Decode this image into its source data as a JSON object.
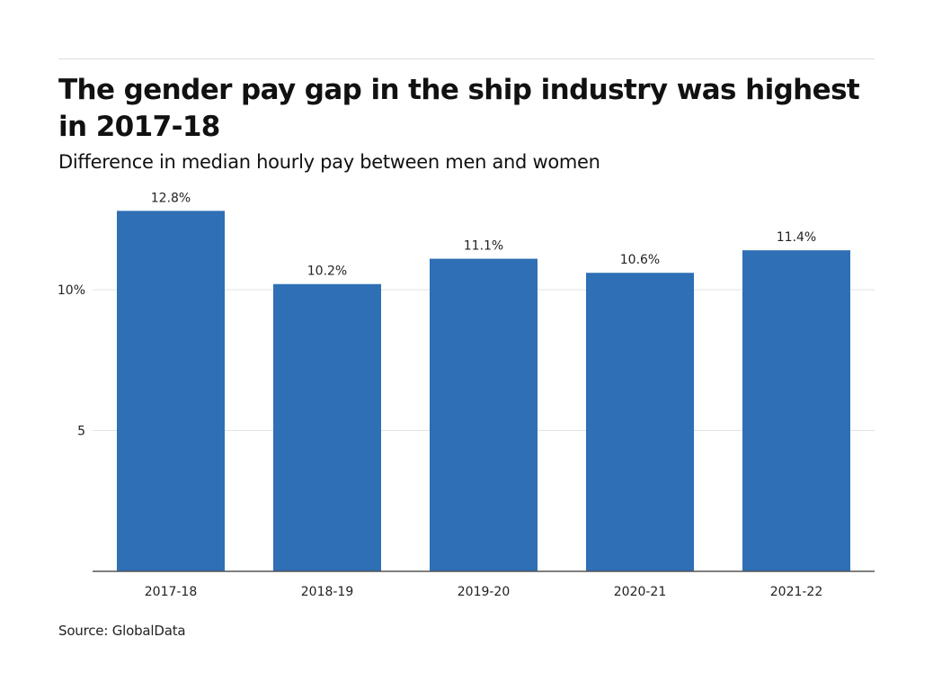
{
  "chart_data": {
    "type": "bar",
    "title": "The gender pay gap in the ship industry was highest in 2017-18",
    "subtitle": "Difference in median hourly pay between men and women",
    "categories": [
      "2017-18",
      "2018-19",
      "2019-20",
      "2020-21",
      "2021-22"
    ],
    "values": [
      12.8,
      10.2,
      11.1,
      10.6,
      11.4
    ],
    "data_labels": [
      "12.8%",
      "10.2%",
      "11.1%",
      "10.6%",
      "11.4%"
    ],
    "xlabel": "",
    "ylabel": "",
    "ylim": [
      0,
      14
    ],
    "yticks": [
      {
        "value": 5,
        "label": "5"
      },
      {
        "value": 10,
        "label": "10%"
      }
    ],
    "grid": true,
    "legend": "none",
    "bar_color": "#2e6fb5",
    "source": "Source: GlobalData"
  }
}
